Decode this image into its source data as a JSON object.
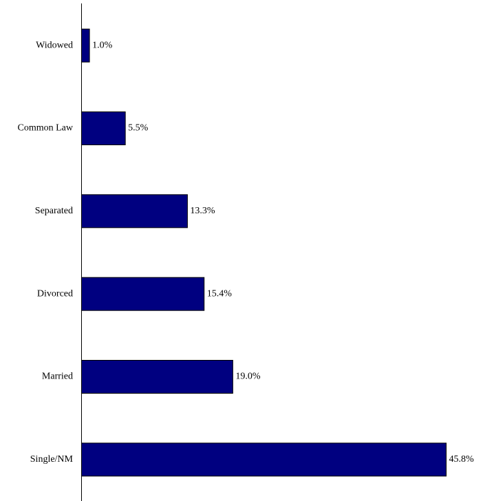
{
  "chart_data": {
    "type": "hbar",
    "categories": [
      "Widowed",
      "Common Law",
      "Separated",
      "Divorced",
      "Married",
      "Single/NM"
    ],
    "values": [
      1.0,
      5.5,
      13.3,
      15.4,
      19.0,
      45.8
    ],
    "value_labels": [
      "1.0%",
      "5.5%",
      "13.3%",
      "15.4%",
      "19.0%",
      "45.8%"
    ],
    "color": "#000080"
  }
}
